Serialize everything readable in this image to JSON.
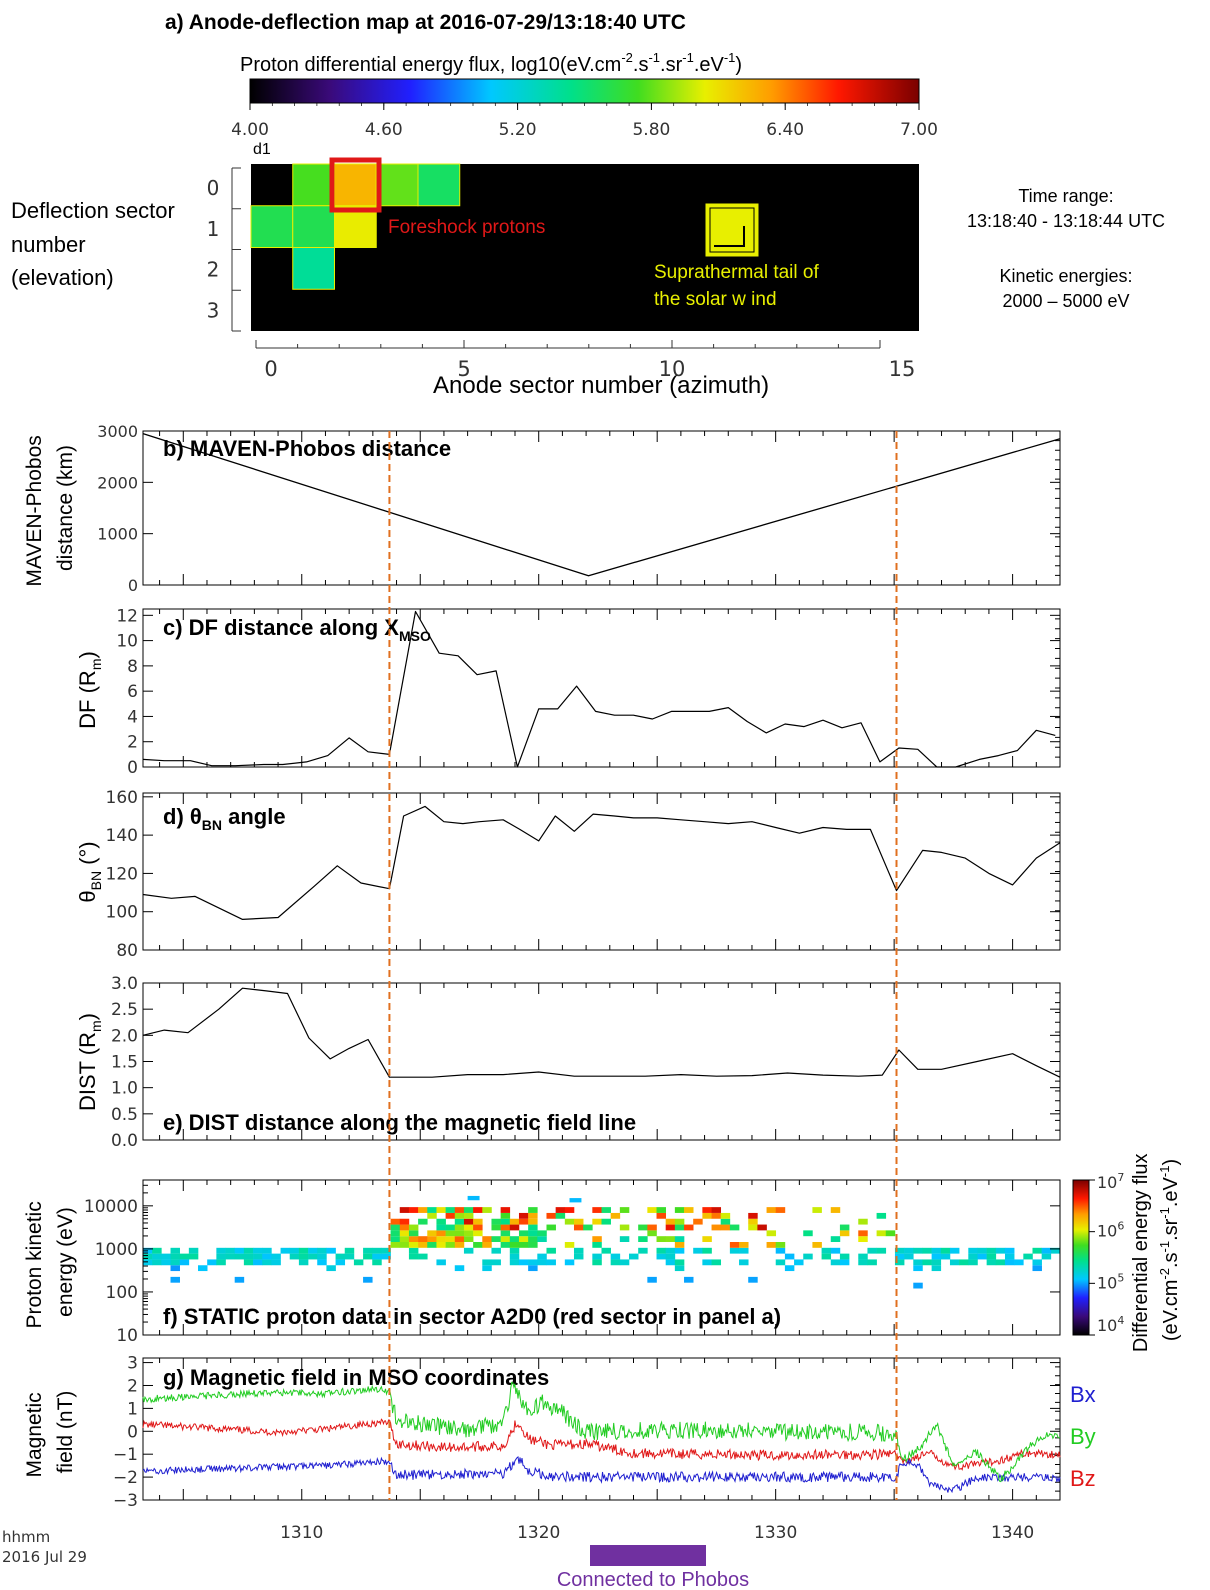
{
  "figure": {
    "time_label_1": "hhmm",
    "time_label_2": "2016 Jul 29",
    "connected_label": "Connected to Phobos",
    "connected_color": "#7030a0",
    "orbit_marker_color": "#e07020"
  },
  "panel_a": {
    "title": "a) Anode-deflection map at 2016-07-29/13:18:40  UTC",
    "colorbar_label": "Proton differential  energy  flux, log10(eV.cm",
    "colorbar_label_tail_1": "-2",
    "colorbar_label_tail_2": ".s",
    "colorbar_label_tail_3": "-1",
    "colorbar_label_tail_4": ".sr",
    "colorbar_label_tail_5": "-1",
    "colorbar_label_tail_6": ".eV",
    "colorbar_label_tail_7": "-1",
    "colorbar_label_tail_8": ")",
    "colorbar_ticks": [
      "4.00",
      "4.60",
      "5.20",
      "5.80",
      "6.40",
      "7.00"
    ],
    "colorbar_range": [
      4.0,
      7.0
    ],
    "d1_label": "d1",
    "ylabel_1": "Deflection  sector",
    "ylabel_2": "number",
    "ylabel_3": "(elevation)",
    "yticks": [
      "0",
      "1",
      "2",
      "3"
    ],
    "xticks": [
      "0",
      "5",
      "10",
      "15"
    ],
    "xlabel": "Anode sector number (azimuth)",
    "foreshock_label": "Foreshock protons",
    "suprathermal_label_1": "Suprathermal tail of",
    "suprathermal_label_2": "the solar w ind",
    "side_time_title": "Time range:",
    "side_time_range": "13:18:40 - 13:18:44 UTC",
    "side_energy_title": "Kinetic energies:",
    "side_energy_range": "2000 – 5000 eV",
    "cells": [
      {
        "anode": 1,
        "defl": 0,
        "value": 5.75
      },
      {
        "anode": 2,
        "defl": 0,
        "value": 6.25
      },
      {
        "anode": 3,
        "defl": 0,
        "value": 5.8
      },
      {
        "anode": 4,
        "defl": 0,
        "value": 5.55
      },
      {
        "anode": 0,
        "defl": 1,
        "value": 5.6
      },
      {
        "anode": 1,
        "defl": 1,
        "value": 5.6
      },
      {
        "anode": 2,
        "defl": 1,
        "value": 6.05
      },
      {
        "anode": 1,
        "defl": 2,
        "value": 5.4
      }
    ]
  },
  "chart_data": [
    {
      "id": "b",
      "type": "line",
      "title": "b) MAVEN-Phobos  distance",
      "ylabel": "MAVEN-Phobos distance (km)",
      "ylim": [
        0,
        3000
      ],
      "yticks": [
        "3000",
        "2000",
        "1000",
        "0"
      ],
      "xlim": [
        1303.3,
        1342
      ],
      "series": [
        {
          "x": [
            1303.3,
            1322.1,
            1342
          ],
          "y": [
            2950,
            180,
            2850
          ]
        }
      ]
    },
    {
      "id": "c",
      "type": "line",
      "title": "c) DF distance along X",
      "title_sub": "MSO",
      "ylabel": "DF (R",
      "ylabel_sub": "m",
      "ylabel_tail": ")",
      "ylim": [
        0,
        12.5
      ],
      "yticks": [
        "12",
        "10",
        "8",
        "6",
        "4",
        "2",
        "0"
      ],
      "xlim": [
        1303.3,
        1342
      ],
      "series": [
        {
          "x": [
            1303.3,
            1304.2,
            1305.3,
            1306.2,
            1307.2,
            1308.4,
            1309.2,
            1310.2,
            1311.1,
            1312.0,
            1312.8,
            1313.7,
            1314.8,
            1315.8,
            1316.6,
            1317.4,
            1318.2,
            1319.1,
            1320.0,
            1320.8,
            1321.6,
            1322.4,
            1323.2,
            1324.0,
            1324.8,
            1325.6,
            1326.4,
            1327.2,
            1328.0,
            1328.8,
            1329.6,
            1330.4,
            1331.2,
            1332.0,
            1332.8,
            1333.6,
            1334.4,
            1335.2,
            1336.0,
            1336.8,
            1337.6,
            1338.6,
            1339.4,
            1340.2,
            1341.0,
            1341.8
          ],
          "y": [
            0.6,
            0.5,
            0.5,
            0.1,
            0.1,
            0.2,
            0.2,
            0.4,
            0.9,
            2.3,
            1.2,
            1.0,
            12.3,
            9.0,
            8.8,
            7.3,
            7.6,
            0.0,
            4.6,
            4.6,
            6.4,
            4.4,
            4.1,
            4.1,
            3.8,
            4.4,
            4.4,
            4.4,
            4.7,
            3.6,
            2.7,
            3.4,
            3.2,
            3.7,
            3.1,
            3.5,
            0.4,
            1.5,
            1.4,
            0.0,
            0.0,
            0.6,
            0.9,
            1.3,
            2.9,
            2.5
          ]
        }
      ]
    },
    {
      "id": "d",
      "type": "line",
      "title": "d) θ",
      "title_sub": "BN",
      "title_tail": " angle",
      "ylabel": "θ",
      "ylabel_sub": "BN",
      "ylabel_tail": " (°)",
      "ylim": [
        80,
        162
      ],
      "yticks": [
        "160",
        "140",
        "120",
        "100",
        "80"
      ],
      "xlim": [
        1303.3,
        1342
      ],
      "series": [
        {
          "x": [
            1303.3,
            1304.5,
            1305.5,
            1307.5,
            1309.0,
            1310.5,
            1311.5,
            1312.5,
            1313.7,
            1314.3,
            1315.2,
            1316.0,
            1316.8,
            1317.5,
            1318.5,
            1319.2,
            1320.0,
            1320.7,
            1321.5,
            1322.3,
            1323.2,
            1324.0,
            1325.0,
            1326.0,
            1327.0,
            1328.0,
            1329.0,
            1330.0,
            1331.0,
            1332.0,
            1333.0,
            1334.0,
            1335.1,
            1336.2,
            1337.0,
            1338.0,
            1339.0,
            1340.0,
            1341.0,
            1342.0
          ],
          "y": [
            109,
            107,
            108,
            96,
            97,
            113,
            124,
            115,
            112,
            150,
            155,
            147,
            146,
            147,
            148,
            143,
            137,
            150,
            142,
            151,
            150,
            149,
            149,
            148,
            147,
            146,
            147,
            144,
            141,
            144,
            143,
            143,
            111,
            132,
            131,
            128,
            120,
            114,
            128,
            136
          ]
        }
      ]
    },
    {
      "id": "e",
      "type": "line",
      "title": "e) DIST distance along the magnetic field line",
      "ylabel": "DIST (R",
      "ylabel_sub": "m",
      "ylabel_tail": ")",
      "ylim": [
        0,
        3.0
      ],
      "yticks": [
        "3.0",
        "2.5",
        "2.0",
        "1.5",
        "1.0",
        "0.5",
        "0.0"
      ],
      "xlim": [
        1303.3,
        1342
      ],
      "series": [
        {
          "x": [
            1303.3,
            1304.2,
            1305.2,
            1306.5,
            1307.5,
            1308.5,
            1309.4,
            1310.3,
            1311.2,
            1312.0,
            1312.8,
            1313.7,
            1314.3,
            1315.5,
            1317.0,
            1318.5,
            1320.0,
            1321.5,
            1323.0,
            1324.5,
            1326.0,
            1327.5,
            1329.0,
            1330.5,
            1332.0,
            1333.5,
            1334.5,
            1335.2,
            1336.0,
            1337.0,
            1338.5,
            1340.0,
            1341.0,
            1342.0
          ],
          "y": [
            2.0,
            2.1,
            2.05,
            2.5,
            2.9,
            2.85,
            2.8,
            1.95,
            1.55,
            1.75,
            1.92,
            1.2,
            1.2,
            1.2,
            1.25,
            1.25,
            1.3,
            1.22,
            1.22,
            1.22,
            1.25,
            1.22,
            1.23,
            1.28,
            1.24,
            1.22,
            1.24,
            1.72,
            1.35,
            1.35,
            1.5,
            1.65,
            1.42,
            1.2
          ]
        }
      ]
    },
    {
      "id": "f",
      "type": "heatmap",
      "title": "f) STATIC proton data in sector A2D0 (red sector in panel a)",
      "ylabel_1": "Proton  kinetic",
      "ylabel_2": "energy (eV)",
      "yticks": [
        "10000",
        "1000",
        "100",
        "10"
      ],
      "ylim_log10": [
        1.0,
        4.6
      ],
      "xlim": [
        1303.3,
        1342
      ],
      "colorbar_ticks": [
        "10",
        "10",
        "10",
        "10"
      ],
      "colorbar_exp": [
        "7",
        "6",
        "5",
        "4"
      ],
      "colorbar_label_1": "Differential  energy  flux",
      "colorbar_label_2": "(eV.cm",
      "colorbar_label_2_sup1": "-2",
      "colorbar_label_2_mid1": ".s",
      "colorbar_label_2_sup2": "-1",
      "colorbar_label_2_mid2": ".sr",
      "colorbar_label_2_sup3": "-1",
      "colorbar_label_2_mid3": ".eV",
      "colorbar_label_2_sup4": "-1",
      "colorbar_label_2_end": ")",
      "colorbar_range_log10": [
        4,
        7
      ]
    },
    {
      "id": "g",
      "type": "line",
      "title": "g) Magnetic field in MSO coordinates",
      "ylabel_1": "Magnetic",
      "ylabel_2": "field  (nT)",
      "ylim": [
        -3,
        3.2
      ],
      "yticks": [
        "3",
        "2",
        "1",
        "0",
        "−1",
        "−2",
        "−3"
      ],
      "xlim": [
        1303.3,
        1342
      ],
      "xticks": [
        {
          "value": 1310,
          "label": "1310"
        },
        {
          "value": 1320,
          "label": "1320"
        },
        {
          "value": 1330,
          "label": "1330"
        },
        {
          "value": 1340,
          "label": "1340"
        }
      ],
      "series": [
        {
          "name": "Bx",
          "color": "#1f1fd0",
          "x": [
            1303.3,
            1306,
            1309,
            1311,
            1313,
            1313.7,
            1314,
            1316,
            1318.5,
            1319.1,
            1319.6,
            1320.5,
            1322,
            1326,
            1330,
            1334,
            1335.1,
            1335.3,
            1336,
            1336.5,
            1337.5,
            1338.5,
            1339.5,
            1340.5,
            1342
          ],
          "y": [
            -1.75,
            -1.65,
            -1.55,
            -1.5,
            -1.35,
            -1.3,
            -1.9,
            -1.9,
            -1.85,
            -1.15,
            -1.75,
            -1.95,
            -2.0,
            -2.0,
            -2.0,
            -2.0,
            -2.0,
            -1.4,
            -1.45,
            -2.3,
            -2.6,
            -2.0,
            -2.05,
            -2.0,
            -2.05
          ]
        },
        {
          "name": "By",
          "color": "#22cc22",
          "x": [
            1303.3,
            1306,
            1309,
            1311,
            1313,
            1313.7,
            1314,
            1315.5,
            1317,
            1318.5,
            1318.9,
            1319.2,
            1319.6,
            1320.2,
            1321,
            1322,
            1324,
            1328,
            1330,
            1334,
            1335.1,
            1335.3,
            1336,
            1336.8,
            1337.5,
            1338.5,
            1339.5,
            1340.5,
            1341.2,
            1342
          ],
          "y": [
            1.4,
            1.55,
            1.7,
            1.65,
            1.85,
            1.75,
            0.45,
            0.25,
            0.05,
            0.35,
            2.1,
            1.4,
            0.8,
            1.3,
            0.8,
            -0.05,
            0.05,
            0.05,
            0.0,
            -0.05,
            -0.1,
            -1.3,
            -0.8,
            0.3,
            -1.5,
            -0.9,
            -2.1,
            -0.9,
            -0.2,
            -0.15
          ]
        },
        {
          "name": "Bz",
          "color": "#e01818",
          "x": [
            1303.3,
            1306,
            1309,
            1311,
            1313,
            1313.7,
            1314,
            1316,
            1318.5,
            1319.1,
            1319.6,
            1320.5,
            1322,
            1324,
            1326,
            1328,
            1330,
            1334,
            1335.1,
            1335.3,
            1336.5,
            1337.5,
            1338.5,
            1339.5,
            1340.5,
            1342
          ],
          "y": [
            0.3,
            0.15,
            -0.05,
            0.1,
            0.35,
            0.4,
            -0.55,
            -0.7,
            -0.65,
            0.45,
            -0.35,
            -0.6,
            -0.55,
            -0.95,
            -1.0,
            -1.0,
            -1.05,
            -1.0,
            -1.0,
            -1.35,
            -0.95,
            -1.55,
            -1.45,
            -1.25,
            -0.95,
            -1.0
          ]
        }
      ]
    }
  ]
}
